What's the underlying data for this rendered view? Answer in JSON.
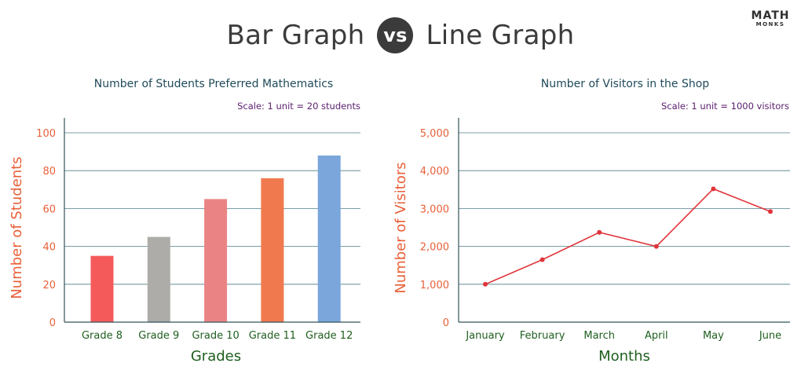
{
  "header": {
    "title_left": "Bar Graph",
    "vs_label": "vs",
    "title_right": "Line Graph"
  },
  "logo": {
    "main": "MATH",
    "sub": "MONKS"
  },
  "chart_data": [
    {
      "type": "bar",
      "title": "Number of Students Preferred Mathematics",
      "scale_note": "Scale: 1 unit = 20 students",
      "xlabel": "Grades",
      "ylabel": "Number of Students",
      "categories": [
        "Grade 8",
        "Grade 9",
        "Grade 10",
        "Grade 11",
        "Grade 12"
      ],
      "values": [
        35,
        45,
        65,
        76,
        88
      ],
      "colors": [
        "#f55a5a",
        "#adaca8",
        "#ea8484",
        "#f07a4e",
        "#7aa6db"
      ],
      "ylim": [
        0,
        100
      ],
      "yticks": [
        0,
        20,
        40,
        60,
        80,
        100
      ],
      "ytick_labels": [
        "0",
        "20",
        "40",
        "60",
        "80",
        "100"
      ],
      "grid": true
    },
    {
      "type": "line",
      "title": "Number of Visitors in the Shop",
      "scale_note": "Scale: 1 unit = 1000 visitors",
      "xlabel": "Months",
      "ylabel": "Number of Visitors",
      "categories": [
        "January",
        "February",
        "March",
        "April",
        "May",
        "June"
      ],
      "values": [
        1000,
        1650,
        2370,
        2000,
        3520,
        2920
      ],
      "color": "#e0353b",
      "ylim": [
        0,
        5000
      ],
      "yticks": [
        0,
        1000,
        2000,
        3000,
        4000,
        5000
      ],
      "ytick_labels": [
        "0",
        "1,000",
        "2,000",
        "3,000",
        "4,000",
        "5,000"
      ],
      "grid": true
    }
  ]
}
